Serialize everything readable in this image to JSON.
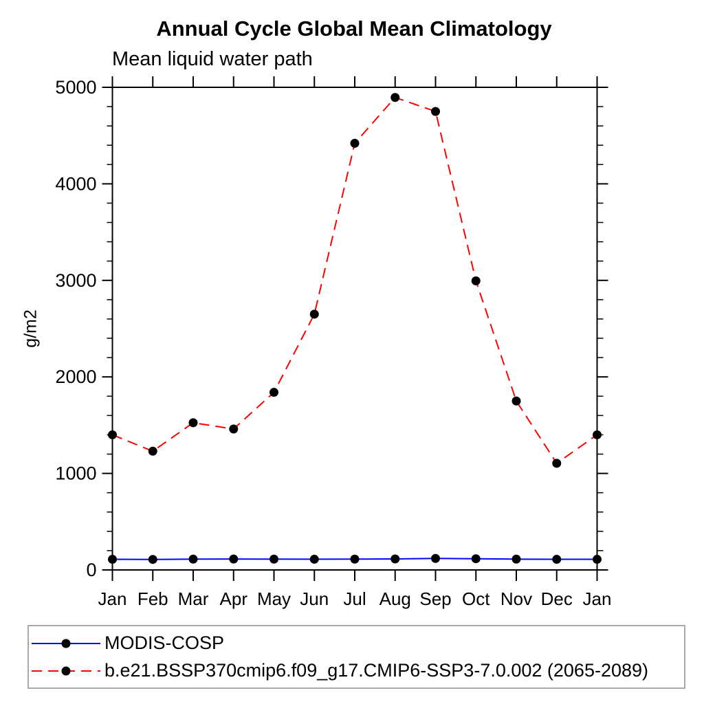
{
  "header": {
    "title": "Annual Cycle Global Mean Climatology",
    "subtitle": "Mean liquid water path"
  },
  "chart_data": {
    "type": "line",
    "title": "Annual Cycle Global Mean Climatology",
    "subtitle": "Mean liquid water path",
    "ylabel": "g/m2",
    "xlabel": "",
    "categories": [
      "Jan",
      "Feb",
      "Mar",
      "Apr",
      "May",
      "Jun",
      "Jul",
      "Aug",
      "Sep",
      "Oct",
      "Nov",
      "Dec",
      "Jan"
    ],
    "ylim": [
      0,
      5000
    ],
    "yticks_major": [
      0,
      1000,
      2000,
      3000,
      4000,
      5000
    ],
    "ytick_minor_step": 200,
    "grid": false,
    "legend_position": "bottom-box",
    "series": [
      {
        "name": "MODIS-COSP",
        "color": "#0000ff",
        "style": "solid",
        "marker": "filled-circle",
        "marker_color": "#000000",
        "values": [
          110,
          109,
          112,
          113,
          112,
          111,
          112,
          114,
          119,
          116,
          112,
          110,
          110
        ]
      },
      {
        "name": "b.e21.BSSP370cmip6.f09_g17.CMIP6-SSP3-7.0.002 (2065-2089)",
        "color": "#ff0000",
        "style": "dashed",
        "marker": "filled-circle",
        "marker_color": "#000000",
        "values": [
          1400,
          1230,
          1525,
          1460,
          1840,
          2650,
          4420,
          4895,
          4750,
          2995,
          1750,
          1105,
          1400
        ]
      }
    ]
  },
  "colors": {
    "axis": "#000000",
    "text": "#000000",
    "legend_border": "#a9a9a9",
    "background": "#ffffff"
  }
}
